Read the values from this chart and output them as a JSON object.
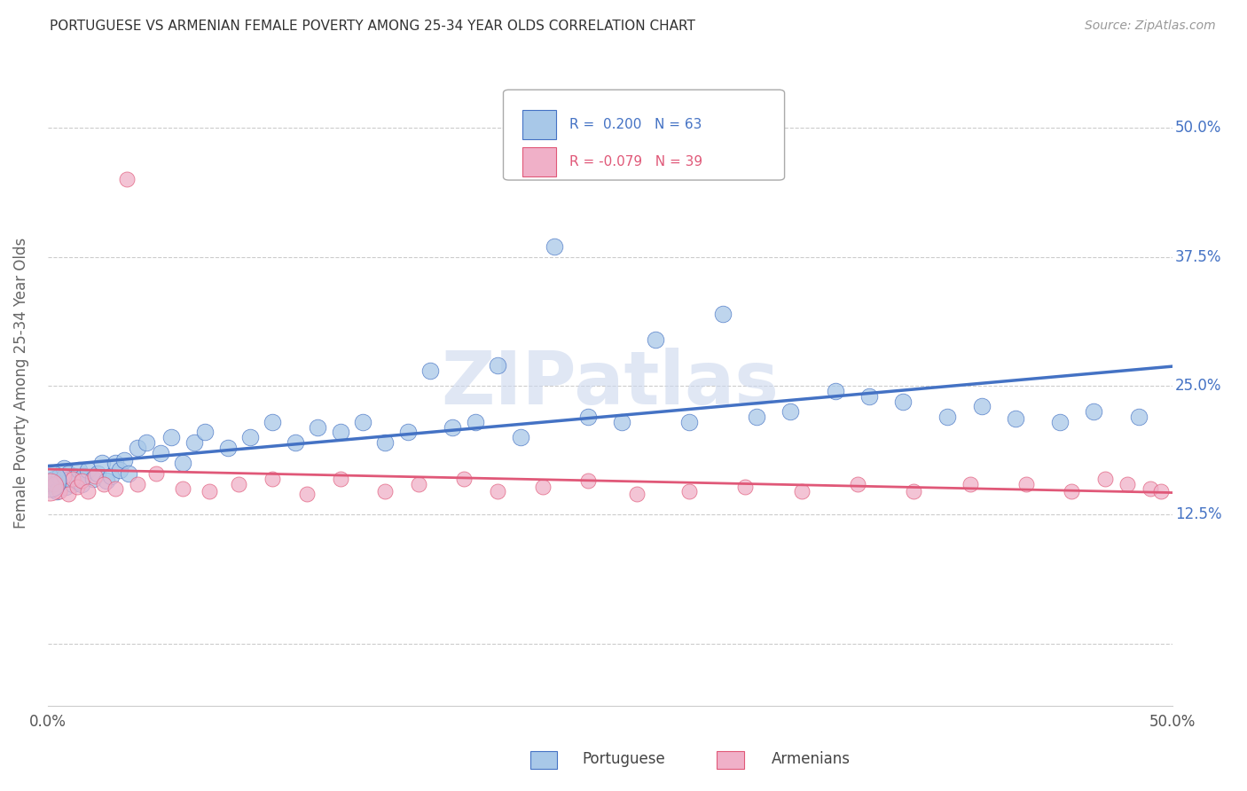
{
  "title": "PORTUGUESE VS ARMENIAN FEMALE POVERTY AMONG 25-34 YEAR OLDS CORRELATION CHART",
  "source": "Source: ZipAtlas.com",
  "ylabel": "Female Poverty Among 25-34 Year Olds",
  "xlim": [
    0.0,
    0.5
  ],
  "ylim": [
    -0.06,
    0.565
  ],
  "yticks": [
    0.0,
    0.125,
    0.25,
    0.375,
    0.5
  ],
  "ytick_labels": [
    "",
    "12.5%",
    "25.0%",
    "37.5%",
    "50.0%"
  ],
  "portuguese_R": 0.2,
  "portuguese_N": 63,
  "armenian_R": -0.079,
  "armenian_N": 39,
  "portuguese_color": "#a8c8e8",
  "armenian_color": "#f0b0c8",
  "portuguese_line_color": "#4472c4",
  "armenian_line_color": "#e05878",
  "watermark_color": "#ccd8ee",
  "bg_color": "#ffffff",
  "grid_color": "#cccccc",
  "pt_x": [
    0.002,
    0.003,
    0.004,
    0.005,
    0.006,
    0.007,
    0.008,
    0.009,
    0.01,
    0.011,
    0.012,
    0.013,
    0.014,
    0.015,
    0.016,
    0.018,
    0.02,
    0.022,
    0.024,
    0.026,
    0.028,
    0.03,
    0.032,
    0.034,
    0.036,
    0.04,
    0.044,
    0.05,
    0.055,
    0.06,
    0.065,
    0.07,
    0.08,
    0.09,
    0.1,
    0.11,
    0.12,
    0.13,
    0.14,
    0.15,
    0.16,
    0.17,
    0.18,
    0.19,
    0.2,
    0.21,
    0.225,
    0.24,
    0.255,
    0.27,
    0.285,
    0.3,
    0.315,
    0.33,
    0.35,
    0.365,
    0.38,
    0.4,
    0.415,
    0.43,
    0.45,
    0.465,
    0.485
  ],
  "pt_y": [
    0.155,
    0.16,
    0.148,
    0.162,
    0.158,
    0.17,
    0.152,
    0.165,
    0.16,
    0.155,
    0.162,
    0.158,
    0.168,
    0.155,
    0.162,
    0.168,
    0.16,
    0.165,
    0.175,
    0.158,
    0.162,
    0.175,
    0.168,
    0.178,
    0.165,
    0.19,
    0.195,
    0.185,
    0.2,
    0.175,
    0.195,
    0.205,
    0.19,
    0.2,
    0.215,
    0.195,
    0.21,
    0.205,
    0.215,
    0.195,
    0.205,
    0.265,
    0.21,
    0.215,
    0.27,
    0.2,
    0.385,
    0.22,
    0.215,
    0.295,
    0.215,
    0.32,
    0.22,
    0.225,
    0.245,
    0.24,
    0.235,
    0.22,
    0.23,
    0.218,
    0.215,
    0.225,
    0.22
  ],
  "ar_x": [
    0.003,
    0.005,
    0.007,
    0.009,
    0.011,
    0.013,
    0.015,
    0.018,
    0.021,
    0.025,
    0.03,
    0.035,
    0.04,
    0.048,
    0.06,
    0.072,
    0.085,
    0.1,
    0.115,
    0.13,
    0.15,
    0.165,
    0.185,
    0.2,
    0.22,
    0.24,
    0.262,
    0.285,
    0.31,
    0.335,
    0.36,
    0.385,
    0.41,
    0.435,
    0.455,
    0.47,
    0.48,
    0.49,
    0.495
  ],
  "ar_y": [
    0.155,
    0.148,
    0.162,
    0.145,
    0.16,
    0.152,
    0.158,
    0.148,
    0.162,
    0.155,
    0.15,
    0.45,
    0.155,
    0.165,
    0.15,
    0.148,
    0.155,
    0.16,
    0.145,
    0.16,
    0.148,
    0.155,
    0.16,
    0.148,
    0.152,
    0.158,
    0.145,
    0.148,
    0.152,
    0.148,
    0.155,
    0.148,
    0.155,
    0.155,
    0.148,
    0.16,
    0.155,
    0.15,
    0.148
  ]
}
